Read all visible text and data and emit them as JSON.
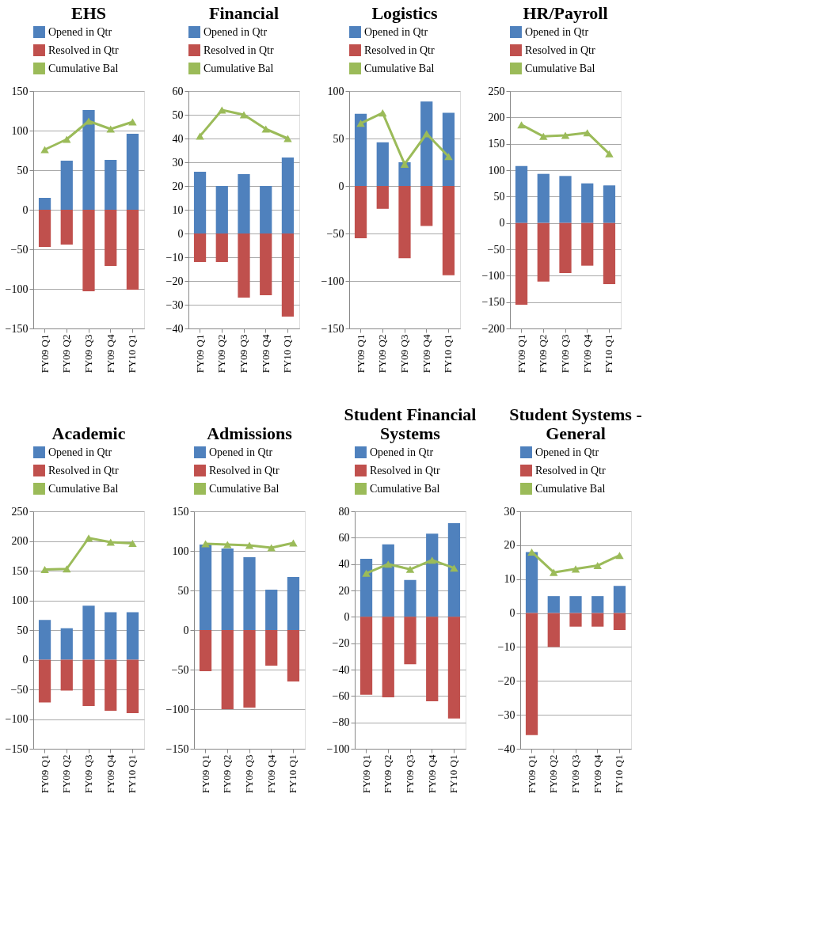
{
  "chart_data": [
    {
      "type": "bar",
      "stacked": true,
      "title": "EHS",
      "categories": [
        "FY09 Q1",
        "FY09 Q2",
        "FY09 Q3",
        "FY09 Q4",
        "FY10 Q1"
      ],
      "ylim": [
        -150,
        150
      ],
      "yticks": [
        -150,
        -100,
        -50,
        0,
        50,
        100,
        150
      ],
      "grid": "y",
      "legend": "top",
      "marker": "triangle",
      "series": [
        {
          "name": "Opened in Qtr",
          "color": "#4f81bd",
          "values": [
            15,
            62,
            126,
            63,
            96
          ]
        },
        {
          "name": "Resolved in Qtr",
          "color": "#c0504d",
          "values": [
            -47,
            -44,
            -103,
            -71,
            -101
          ]
        },
        {
          "name": "Cumulative Bal",
          "type": "line",
          "color": "#9bbb59",
          "values": [
            76,
            89,
            112,
            102,
            111
          ]
        }
      ]
    },
    {
      "type": "bar",
      "stacked": true,
      "title": "Financial",
      "categories": [
        "FY09 Q1",
        "FY09 Q2",
        "FY09 Q3",
        "FY09 Q4",
        "FY10 Q1"
      ],
      "ylim": [
        -40,
        60
      ],
      "yticks": [
        -40,
        -30,
        -20,
        -10,
        0,
        10,
        20,
        30,
        40,
        50,
        60
      ],
      "grid": "y",
      "legend": "top",
      "marker": "triangle",
      "series": [
        {
          "name": "Opened in Qtr",
          "color": "#4f81bd",
          "values": [
            26,
            20,
            25,
            20,
            32
          ]
        },
        {
          "name": "Resolved in Qtr",
          "color": "#c0504d",
          "values": [
            -12,
            -12,
            -27,
            -26,
            -35
          ]
        },
        {
          "name": "Cumulative Bal",
          "type": "line",
          "color": "#9bbb59",
          "values": [
            41,
            52,
            50,
            44,
            40
          ]
        }
      ]
    },
    {
      "type": "bar",
      "stacked": true,
      "title": "Logistics",
      "categories": [
        "FY09 Q1",
        "FY09 Q2",
        "FY09 Q3",
        "FY09 Q4",
        "FY10 Q1"
      ],
      "ylim": [
        -150,
        100
      ],
      "yticks": [
        -150,
        -100,
        -50,
        0,
        50,
        100
      ],
      "grid": "y",
      "legend": "top",
      "marker": "triangle",
      "series": [
        {
          "name": "Opened in Qtr",
          "color": "#4f81bd",
          "values": [
            76,
            46,
            25,
            89,
            77
          ]
        },
        {
          "name": "Resolved in Qtr",
          "color": "#c0504d",
          "values": [
            -55,
            -24,
            -76,
            -42,
            -94
          ]
        },
        {
          "name": "Cumulative Bal",
          "type": "line",
          "color": "#9bbb59",
          "values": [
            66,
            77,
            23,
            55,
            31
          ]
        }
      ]
    },
    {
      "type": "bar",
      "stacked": true,
      "title": "HR/Payroll",
      "categories": [
        "FY09 Q1",
        "FY09 Q2",
        "FY09 Q3",
        "FY09 Q4",
        "FY10 Q1"
      ],
      "ylim": [
        -200,
        250
      ],
      "yticks": [
        -200,
        -150,
        -100,
        -50,
        0,
        50,
        100,
        150,
        200,
        250
      ],
      "grid": "y",
      "legend": "top",
      "marker": "triangle",
      "series": [
        {
          "name": "Opened in Qtr",
          "color": "#4f81bd",
          "values": [
            108,
            93,
            89,
            75,
            71
          ]
        },
        {
          "name": "Resolved in Qtr",
          "color": "#c0504d",
          "values": [
            -155,
            -111,
            -95,
            -81,
            -116
          ]
        },
        {
          "name": "Cumulative Bal",
          "type": "line",
          "color": "#9bbb59",
          "values": [
            186,
            164,
            166,
            171,
            131
          ]
        }
      ]
    },
    {
      "type": "bar",
      "stacked": true,
      "title": "Academic",
      "categories": [
        "FY09 Q1",
        "FY09 Q2",
        "FY09 Q3",
        "FY09 Q4",
        "FY10 Q1"
      ],
      "ylim": [
        -150,
        250
      ],
      "yticks": [
        -150,
        -100,
        -50,
        0,
        50,
        100,
        150,
        200,
        250
      ],
      "grid": "y",
      "legend": "top",
      "marker": "triangle",
      "series": [
        {
          "name": "Opened in Qtr",
          "color": "#4f81bd",
          "values": [
            67,
            53,
            91,
            80,
            80
          ]
        },
        {
          "name": "Resolved in Qtr",
          "color": "#c0504d",
          "values": [
            -72,
            -52,
            -78,
            -86,
            -90
          ]
        },
        {
          "name": "Cumulative Bal",
          "type": "line",
          "color": "#9bbb59",
          "values": [
            152,
            153,
            205,
            198,
            196
          ]
        }
      ]
    },
    {
      "type": "bar",
      "stacked": true,
      "title": "Admissions",
      "categories": [
        "FY09 Q1",
        "FY09 Q2",
        "FY09 Q3",
        "FY09 Q4",
        "FY10 Q1"
      ],
      "ylim": [
        -150,
        150
      ],
      "yticks": [
        -150,
        -100,
        -50,
        0,
        50,
        100,
        150
      ],
      "grid": "y",
      "legend": "top",
      "marker": "triangle",
      "series": [
        {
          "name": "Opened in Qtr",
          "color": "#4f81bd",
          "values": [
            108,
            103,
            92,
            51,
            67
          ]
        },
        {
          "name": "Resolved in Qtr",
          "color": "#c0504d",
          "values": [
            -52,
            -100,
            -98,
            -45,
            -65
          ]
        },
        {
          "name": "Cumulative Bal",
          "type": "line",
          "color": "#9bbb59",
          "values": [
            109,
            108,
            107,
            104,
            110
          ]
        }
      ]
    },
    {
      "type": "bar",
      "stacked": true,
      "title": "Student Financial Systems",
      "categories": [
        "FY09 Q1",
        "FY09 Q2",
        "FY09 Q3",
        "FY09 Q4",
        "FY10 Q1"
      ],
      "ylim": [
        -100,
        80
      ],
      "yticks": [
        -100,
        -80,
        -60,
        -40,
        -20,
        0,
        20,
        40,
        60,
        80
      ],
      "grid": "y",
      "legend": "top",
      "marker": "triangle",
      "series": [
        {
          "name": "Opened in Qtr",
          "color": "#4f81bd",
          "values": [
            44,
            55,
            28,
            63,
            71
          ]
        },
        {
          "name": "Resolved in Qtr",
          "color": "#c0504d",
          "values": [
            -59,
            -61,
            -36,
            -64,
            -77
          ]
        },
        {
          "name": "Cumulative Bal",
          "type": "line",
          "color": "#9bbb59",
          "values": [
            33,
            40,
            36,
            43,
            37
          ]
        }
      ]
    },
    {
      "type": "bar",
      "stacked": true,
      "title": "Student Systems - General",
      "categories": [
        "FY09 Q1",
        "FY09 Q2",
        "FY09 Q3",
        "FY09 Q4",
        "FY10 Q1"
      ],
      "ylim": [
        -40,
        30
      ],
      "yticks": [
        -40,
        -30,
        -20,
        -10,
        0,
        10,
        20,
        30
      ],
      "grid": "y",
      "legend": "top",
      "marker": "triangle",
      "series": [
        {
          "name": "Opened in Qtr",
          "color": "#4f81bd",
          "values": [
            18,
            5,
            5,
            5,
            8
          ]
        },
        {
          "name": "Resolved in Qtr",
          "color": "#c0504d",
          "values": [
            -36,
            -10,
            -4,
            -4,
            -5
          ]
        },
        {
          "name": "Cumulative Bal",
          "type": "line",
          "color": "#9bbb59",
          "values": [
            18,
            12,
            13,
            14,
            17
          ]
        }
      ]
    }
  ]
}
